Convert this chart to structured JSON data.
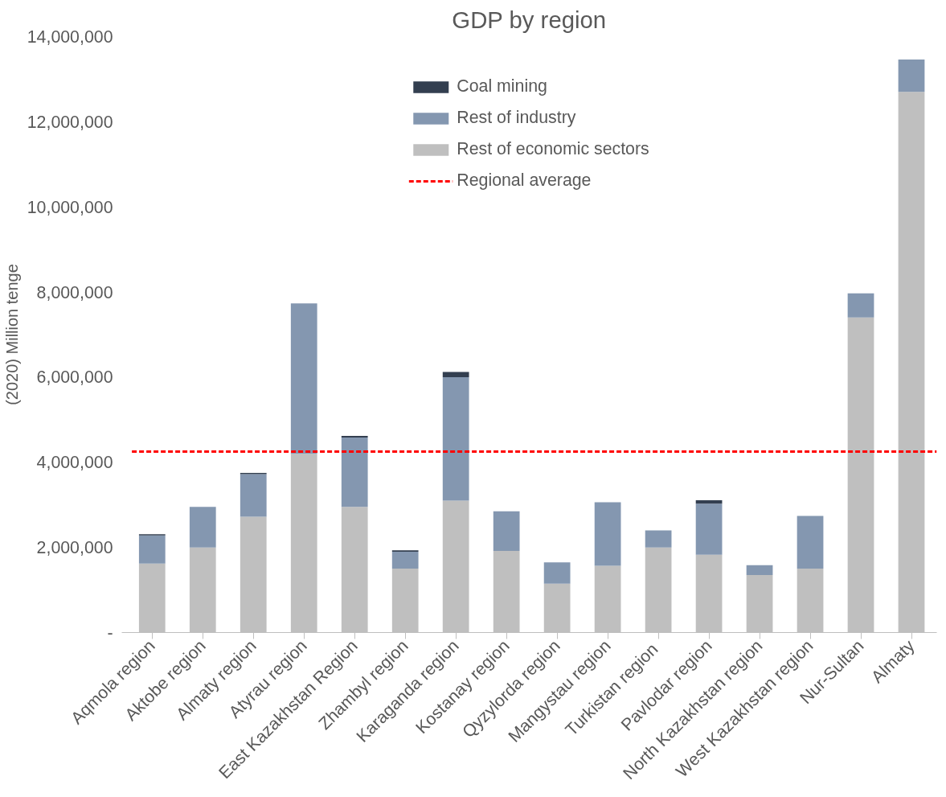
{
  "chart_data": {
    "type": "bar",
    "title": "GDP by region",
    "ylabel": "(2020) Million tenge",
    "categories": [
      "Aqmola region",
      "Aktobe region",
      "Almaty region",
      "Atyrau region",
      "East Kazakhstan Region",
      "Zhambyl region",
      "Karaganda region",
      "Kostanay region",
      "Qyzylorda region",
      "Mangystau region",
      "Turkistan  region",
      "Pavlodar region",
      "North Kazakhstan region",
      "West Kazakhstan region",
      "Nur-Sultan",
      "Almaty"
    ],
    "stacked": true,
    "series": [
      {
        "name": "Rest of economic sectors",
        "color": "#bfbfbf",
        "values": [
          1620000,
          2000000,
          2720000,
          4200000,
          2950000,
          1500000,
          3100000,
          1920000,
          1150000,
          1570000,
          2000000,
          1830000,
          1350000,
          1500000,
          7400000,
          12700000
        ]
      },
      {
        "name": "Rest of industry",
        "color": "#8497b0",
        "values": [
          660000,
          950000,
          1000000,
          3530000,
          1630000,
          400000,
          2900000,
          930000,
          500000,
          1490000,
          400000,
          1200000,
          230000,
          1240000,
          570000,
          760000
        ]
      },
      {
        "name": "Coal mining",
        "color": "#333f50",
        "values": [
          30000,
          0,
          30000,
          0,
          40000,
          30000,
          120000,
          0,
          0,
          0,
          0,
          80000,
          0,
          0,
          0,
          0
        ]
      }
    ],
    "ylim": [
      0,
      14000000
    ],
    "yticks": [
      {
        "value": 0,
        "label": "-"
      },
      {
        "value": 2000000,
        "label": "2,000,000"
      },
      {
        "value": 4000000,
        "label": "4,000,000"
      },
      {
        "value": 6000000,
        "label": "6,000,000"
      },
      {
        "value": 8000000,
        "label": "8,000,000"
      },
      {
        "value": 10000000,
        "label": "10,000,000"
      },
      {
        "value": 12000000,
        "label": "12,000,000"
      },
      {
        "value": 14000000,
        "label": "14,000,000"
      }
    ],
    "ref_lines": [
      {
        "axis": "y",
        "value": 4250000,
        "label": "Regional average",
        "color": "#ff0000",
        "line_style": "dashed"
      }
    ],
    "grid": false,
    "legend": "top"
  }
}
